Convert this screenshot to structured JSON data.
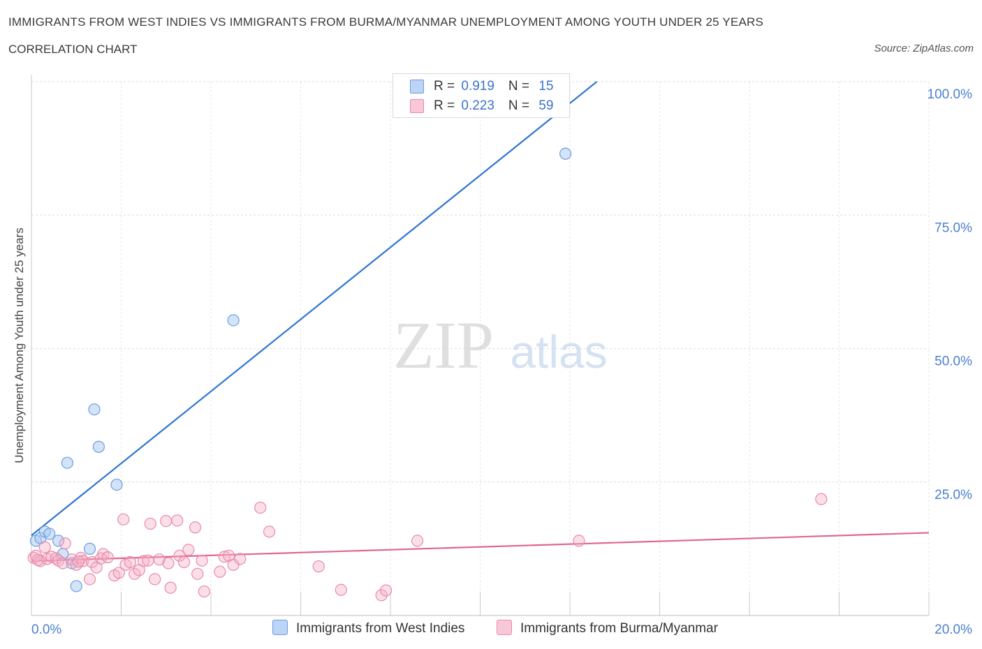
{
  "chart_data": {
    "type": "scatter",
    "title": "IMMIGRANTS FROM WEST INDIES VS IMMIGRANTS FROM BURMA/MYANMAR UNEMPLOYMENT AMONG YOUTH UNDER 25 YEARS",
    "subtitle": "CORRELATION CHART",
    "source": "Source: ZipAtlas.com",
    "ylabel": "Unemployment Among Youth under 25 years",
    "xlabel": "",
    "xlim": [
      0,
      20
    ],
    "ylim": [
      0,
      100
    ],
    "x_tick_labels": [
      "0.0%",
      "20.0%"
    ],
    "y_ticks": [
      25,
      50,
      75,
      100
    ],
    "y_tick_labels": [
      "25.0%",
      "50.0%",
      "75.0%",
      "100.0%"
    ],
    "grid": true,
    "watermark": {
      "zip": "ZIP",
      "atlas": "atlas"
    },
    "series": [
      {
        "name": "Immigrants from West Indies",
        "color": "#6a9de0",
        "fill": "rgba(160,196,240,0.45)",
        "line_color": "#2f74d0",
        "R": "0.919",
        "N": "15",
        "trend": {
          "x0": 0,
          "y0": 15.0,
          "x1": 12.6,
          "y1": 100
        },
        "points": [
          [
            0.1,
            14.0
          ],
          [
            0.2,
            14.5
          ],
          [
            0.3,
            15.7
          ],
          [
            0.4,
            15.3
          ],
          [
            0.6,
            14.0
          ],
          [
            0.7,
            11.5
          ],
          [
            0.8,
            28.6
          ],
          [
            0.9,
            9.8
          ],
          [
            1.0,
            5.5
          ],
          [
            1.3,
            12.5
          ],
          [
            1.4,
            38.6
          ],
          [
            1.5,
            31.6
          ],
          [
            1.9,
            24.5
          ],
          [
            4.5,
            55.3
          ],
          [
            11.9,
            86.5
          ]
        ]
      },
      {
        "name": "Immigrants from Burma/Myanmar",
        "color": "#e88aa8",
        "fill": "rgba(244,176,198,0.4)",
        "line_color": "#e06590",
        "R": "0.223",
        "N": "59",
        "trend": {
          "x0": 0,
          "y0": 10.2,
          "x1": 20,
          "y1": 15.5
        },
        "points": [
          [
            0.05,
            10.8
          ],
          [
            0.1,
            11.2
          ],
          [
            0.2,
            10.2
          ],
          [
            0.3,
            12.8
          ],
          [
            0.35,
            10.6
          ],
          [
            0.45,
            11.0
          ],
          [
            0.55,
            10.7
          ],
          [
            0.6,
            10.3
          ],
          [
            0.7,
            9.8
          ],
          [
            0.75,
            13.5
          ],
          [
            0.9,
            10.5
          ],
          [
            1.0,
            9.5
          ],
          [
            1.1,
            10.8
          ],
          [
            1.15,
            10.2
          ],
          [
            1.3,
            6.8
          ],
          [
            1.35,
            10.0
          ],
          [
            1.45,
            9.0
          ],
          [
            1.55,
            10.7
          ],
          [
            1.6,
            11.5
          ],
          [
            1.7,
            10.9
          ],
          [
            1.85,
            7.5
          ],
          [
            1.95,
            8.0
          ],
          [
            2.05,
            18.0
          ],
          [
            2.1,
            9.5
          ],
          [
            2.2,
            10.0
          ],
          [
            2.3,
            7.8
          ],
          [
            2.4,
            8.5
          ],
          [
            2.5,
            10.2
          ],
          [
            2.6,
            10.3
          ],
          [
            2.65,
            17.2
          ],
          [
            2.75,
            6.8
          ],
          [
            2.85,
            10.5
          ],
          [
            3.0,
            17.7
          ],
          [
            3.05,
            9.8
          ],
          [
            3.1,
            5.2
          ],
          [
            3.25,
            17.8
          ],
          [
            3.3,
            11.2
          ],
          [
            3.4,
            10.0
          ],
          [
            3.5,
            12.3
          ],
          [
            3.65,
            16.5
          ],
          [
            3.7,
            7.8
          ],
          [
            3.8,
            10.3
          ],
          [
            3.85,
            4.5
          ],
          [
            4.2,
            8.2
          ],
          [
            4.3,
            11.0
          ],
          [
            4.4,
            11.2
          ],
          [
            4.5,
            9.5
          ],
          [
            4.65,
            10.6
          ],
          [
            5.1,
            20.2
          ],
          [
            5.3,
            15.7
          ],
          [
            6.4,
            9.2
          ],
          [
            6.9,
            4.8
          ],
          [
            7.8,
            3.8
          ],
          [
            7.9,
            4.7
          ],
          [
            8.6,
            14.0
          ],
          [
            12.2,
            14.0
          ],
          [
            17.6,
            21.8
          ],
          [
            0.15,
            10.4
          ],
          [
            1.05,
            10.1
          ]
        ]
      }
    ]
  }
}
